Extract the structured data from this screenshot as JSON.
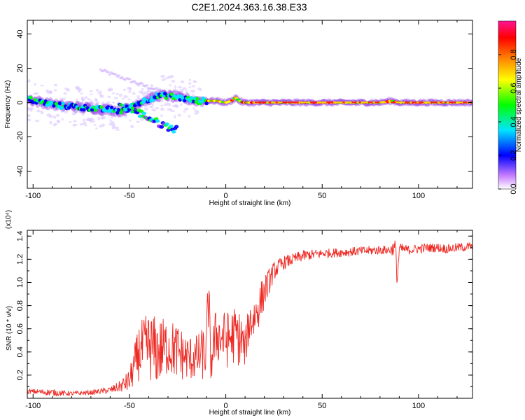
{
  "title": "C2E1.2024.363.16.38.E33",
  "chart_data": [
    {
      "type": "heatmap",
      "title": "C2E1.2024.363.16.38.E33",
      "xlabel": "Height of straight line (km)",
      "ylabel": "Frequency (Hz)",
      "xlim": [
        -103,
        128
      ],
      "ylim": [
        -50,
        48
      ],
      "xticks": [
        -100,
        -50,
        0,
        50,
        100
      ],
      "yticks": [
        40,
        20,
        0,
        -20,
        -40
      ],
      "colorbar": {
        "label": "Normalized spectral amplitude",
        "range": [
          0.0,
          1.0
        ],
        "ticks": [
          0.0,
          0.2,
          0.4,
          0.6,
          0.8
        ],
        "colors": [
          "#ffffff",
          "#9b30ff",
          "#0000ff",
          "#00e5ff",
          "#00ff00",
          "#ffff00",
          "#ff8000",
          "#ff0000",
          "#ff1493"
        ]
      },
      "ridge": {
        "x": [
          -103,
          -95,
          -90,
          -85,
          -80,
          -75,
          -70,
          -65,
          -60,
          -55,
          -50,
          -45,
          -40,
          -35,
          -30,
          -25,
          -20,
          -15,
          -10,
          -5,
          0,
          3,
          5,
          7,
          9,
          12,
          20,
          40,
          60,
          80,
          86,
          90,
          100,
          110,
          128
        ],
        "y": [
          2,
          0,
          -1,
          -2,
          -2,
          -3,
          -3,
          -4,
          -4,
          -5,
          -3,
          0,
          2,
          4,
          4,
          3,
          2,
          1,
          1,
          1,
          0,
          1,
          3,
          1,
          0,
          0,
          0,
          0,
          0,
          0,
          1,
          0,
          0,
          0,
          0
        ]
      },
      "lower_branch": {
        "x": [
          -55,
          -50,
          -45,
          -40,
          -35,
          -30,
          -25
        ],
        "y": [
          -2,
          -4,
          -6,
          -9,
          -12,
          -14,
          -16
        ]
      },
      "upper_faint_branch": {
        "x": [
          -65,
          -55,
          -45,
          -35,
          -25
        ],
        "y": [
          19,
          15,
          11,
          7,
          4
        ]
      },
      "grid": false,
      "legend": "colorbar-right"
    },
    {
      "type": "line",
      "xlabel": "Height of straight line (km)",
      "ylabel": "SNR (10 * v/v)",
      "y_multiplier": "(x10⁴)",
      "xlim": [
        -103,
        128
      ],
      "ylim": [
        0.0,
        1.45
      ],
      "xticks": [
        -100,
        -50,
        0,
        50,
        100
      ],
      "yticks": [
        0.2,
        0.4,
        0.6,
        0.8,
        1.0,
        1.2,
        1.4
      ],
      "series": [
        {
          "color": "#ee2a24",
          "x": [
            -103,
            -90,
            -80,
            -70,
            -60,
            -55,
            -50,
            -45,
            -40,
            -35,
            -30,
            -25,
            -20,
            -15,
            -10,
            -9,
            -8,
            -5,
            0,
            5,
            8,
            10,
            12,
            15,
            20,
            25,
            30,
            35,
            40,
            50,
            60,
            70,
            80,
            85,
            88,
            89,
            90,
            95,
            100,
            105,
            110,
            115,
            120,
            128
          ],
          "y": [
            0.06,
            0.05,
            0.04,
            0.05,
            0.07,
            0.1,
            0.15,
            0.4,
            0.45,
            0.4,
            0.45,
            0.4,
            0.35,
            0.35,
            0.4,
            0.95,
            0.3,
            0.55,
            0.5,
            0.55,
            0.5,
            0.42,
            0.65,
            0.7,
            0.92,
            1.1,
            1.17,
            1.2,
            1.23,
            1.25,
            1.26,
            1.27,
            1.28,
            1.28,
            1.3,
            1.02,
            1.29,
            1.28,
            1.29,
            1.3,
            1.3,
            1.29,
            1.3,
            1.31
          ],
          "noise": [
            0.02,
            0.03,
            0.02,
            0.02,
            0.03,
            0.05,
            0.1,
            0.25,
            0.3,
            0.3,
            0.25,
            0.25,
            0.2,
            0.2,
            0.25,
            0.4,
            0.2,
            0.25,
            0.25,
            0.25,
            0.25,
            0.15,
            0.2,
            0.2,
            0.15,
            0.08,
            0.06,
            0.05,
            0.05,
            0.04,
            0.04,
            0.04,
            0.04,
            0.04,
            0.08,
            0.1,
            0.05,
            0.04,
            0.04,
            0.04,
            0.04,
            0.04,
            0.04,
            0.04
          ]
        }
      ],
      "grid": false
    }
  ]
}
